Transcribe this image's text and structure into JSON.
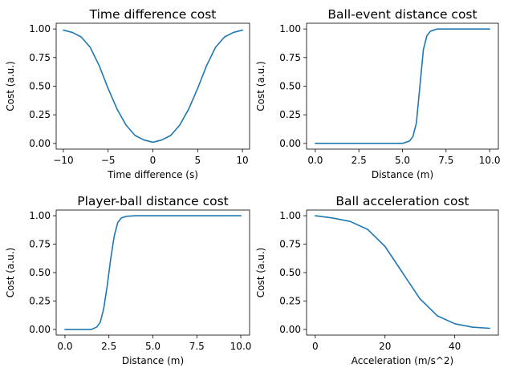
{
  "chart_data": [
    {
      "type": "line",
      "title": "Time difference cost",
      "xlabel": "Time difference (s)",
      "ylabel": "Cost (a.u.)",
      "xlim": [
        -10.8,
        10.8
      ],
      "ylim": [
        -0.05,
        1.05
      ],
      "xticks": [
        -10,
        -5,
        0,
        5,
        10
      ],
      "xtick_labels": [
        "−10",
        "−5",
        "0",
        "5",
        "10"
      ],
      "yticks": [
        0.0,
        0.25,
        0.5,
        0.75,
        1.0
      ],
      "ytick_labels": [
        "0.00",
        "0.25",
        "0.50",
        "0.75",
        "1.00"
      ],
      "color": "#1f77b4",
      "x": [
        -10,
        -9,
        -8,
        -7,
        -6,
        -5,
        -4,
        -3,
        -2,
        -1,
        0,
        1,
        2,
        3,
        4,
        5,
        6,
        7,
        8,
        9,
        10
      ],
      "y": [
        0.99,
        0.97,
        0.93,
        0.84,
        0.68,
        0.48,
        0.3,
        0.16,
        0.07,
        0.03,
        0.01,
        0.03,
        0.07,
        0.16,
        0.3,
        0.48,
        0.68,
        0.84,
        0.93,
        0.97,
        0.99
      ]
    },
    {
      "type": "line",
      "title": "Ball-event distance cost",
      "xlabel": "Distance (m)",
      "ylabel": "Cost (a.u.)",
      "xlim": [
        -0.5,
        10.5
      ],
      "ylim": [
        -0.05,
        1.05
      ],
      "xticks": [
        0,
        2.5,
        5,
        7.5,
        10
      ],
      "xtick_labels": [
        "0.0",
        "2.5",
        "5.0",
        "7.5",
        "10.0"
      ],
      "yticks": [
        0.0,
        0.25,
        0.5,
        0.75,
        1.0
      ],
      "ytick_labels": [
        "0.00",
        "0.25",
        "0.50",
        "0.75",
        "1.00"
      ],
      "color": "#1f77b4",
      "x": [
        0,
        1,
        2,
        3,
        4,
        5,
        5.2,
        5.4,
        5.6,
        5.8,
        6.0,
        6.2,
        6.4,
        6.6,
        6.8,
        7.0,
        7.5,
        8,
        9,
        10
      ],
      "y": [
        0.0,
        0.0,
        0.0,
        0.0,
        0.0,
        0.0,
        0.01,
        0.02,
        0.06,
        0.18,
        0.5,
        0.82,
        0.94,
        0.98,
        0.99,
        1.0,
        1.0,
        1.0,
        1.0,
        1.0
      ]
    },
    {
      "type": "line",
      "title": "Player-ball distance cost",
      "xlabel": "Distance (m)",
      "ylabel": "Cost (a.u.)",
      "xlim": [
        -0.5,
        10.5
      ],
      "ylim": [
        -0.05,
        1.05
      ],
      "xticks": [
        0,
        2.5,
        5,
        7.5,
        10
      ],
      "xtick_labels": [
        "0.0",
        "2.5",
        "5.0",
        "7.5",
        "10.0"
      ],
      "yticks": [
        0.0,
        0.25,
        0.5,
        0.75,
        1.0
      ],
      "ytick_labels": [
        "0.00",
        "0.25",
        "0.50",
        "0.75",
        "1.00"
      ],
      "color": "#1f77b4",
      "x": [
        0,
        1,
        1.5,
        1.8,
        2.0,
        2.2,
        2.4,
        2.5,
        2.6,
        2.8,
        3.0,
        3.2,
        3.5,
        4,
        5,
        7.5,
        10
      ],
      "y": [
        0.0,
        0.0,
        0.0,
        0.02,
        0.06,
        0.18,
        0.38,
        0.5,
        0.62,
        0.82,
        0.94,
        0.98,
        0.995,
        1.0,
        1.0,
        1.0,
        1.0
      ]
    },
    {
      "type": "line",
      "title": "Ball acceleration cost",
      "xlabel": "Acceleration (m/s^2)",
      "ylabel": "Cost (a.u.)",
      "xlim": [
        -2.5,
        52.5
      ],
      "ylim": [
        -0.05,
        1.05
      ],
      "xticks": [
        0,
        20,
        40
      ],
      "xtick_labels": [
        "0",
        "20",
        "40"
      ],
      "yticks": [
        0.0,
        0.25,
        0.5,
        0.75,
        1.0
      ],
      "ytick_labels": [
        "0.00",
        "0.25",
        "0.50",
        "0.75",
        "1.00"
      ],
      "color": "#1f77b4",
      "x": [
        0,
        5,
        10,
        15,
        20,
        25,
        30,
        35,
        40,
        45,
        50
      ],
      "y": [
        1.0,
        0.98,
        0.95,
        0.88,
        0.73,
        0.5,
        0.27,
        0.12,
        0.05,
        0.02,
        0.01
      ]
    }
  ]
}
